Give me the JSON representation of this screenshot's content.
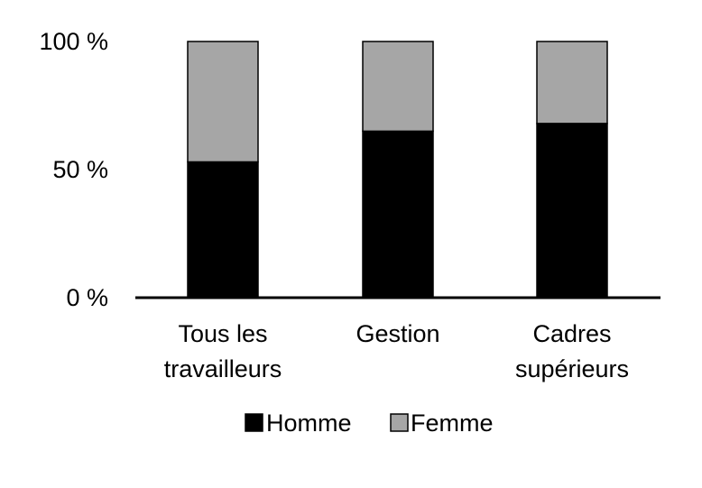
{
  "chart_data": {
    "type": "bar",
    "stacked": true,
    "categories": [
      [
        "Tous les",
        "travailleurs"
      ],
      [
        "Gestion"
      ],
      [
        "Cadres",
        "supérieurs"
      ]
    ],
    "series": [
      {
        "name": "Homme",
        "values": [
          53,
          65,
          68
        ],
        "color": "#000000"
      },
      {
        "name": "Femme",
        "values": [
          47,
          35,
          32
        ],
        "color": "#a6a6a6"
      }
    ],
    "yticks": [
      "0 %",
      "50 %",
      "100 %"
    ],
    "ytick_values": [
      0,
      50,
      100
    ],
    "ylim": [
      0,
      100
    ],
    "grid": false,
    "legend_position": "bottom"
  }
}
